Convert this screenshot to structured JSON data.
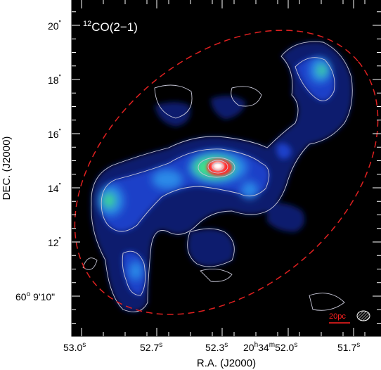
{
  "figure": {
    "panel_label": "CO(2−1)",
    "panel_label_sup": "12",
    "xlabel": "R.A. (J2000)",
    "ylabel": "DEC. (J2000)",
    "scale_bar_label": "20pc",
    "x_ticks": [
      {
        "main": "53.0",
        "sup": "s"
      },
      {
        "main": "52.7",
        "sup": "s"
      },
      {
        "main": "52.3",
        "sup": "s"
      },
      {
        "pre": "20",
        "pre_sup": "h",
        "mid": "34",
        "mid_sup": "m",
        "main": "52.0",
        "sup": "s"
      },
      {
        "main": "51.7",
        "sup": "s"
      }
    ],
    "y_ticks": [
      {
        "main": "20",
        "sup": "\""
      },
      {
        "main": "18",
        "sup": "\""
      },
      {
        "main": "16",
        "sup": "\""
      },
      {
        "main": "14",
        "sup": "\""
      },
      {
        "main": "12",
        "sup": "\""
      },
      {
        "pre": "60",
        "pre_sup": "o",
        "mid": "9'10",
        "sup": "\""
      }
    ],
    "colors": {
      "background": "#000000",
      "ellipse": "#e02020",
      "contour": "#c8c8d8",
      "peak": "#ff0000",
      "scale_bar": "#ff2020"
    }
  }
}
